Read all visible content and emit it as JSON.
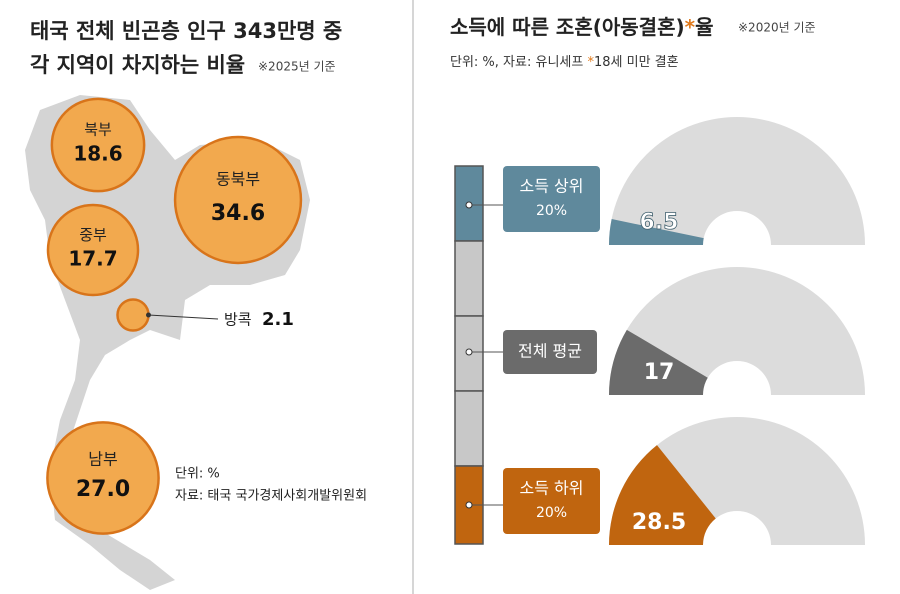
{
  "chart_data": [
    {
      "type": "bubble",
      "title": [
        "태국 전체 빈곤층 인구 343만명 중",
        "각 지역이 차지하는 비율"
      ],
      "note": "※2025년 기준",
      "categories": [
        "북부",
        "동북부",
        "중부",
        "방콕",
        "남부"
      ],
      "values": [
        18.6,
        34.6,
        17.7,
        2.1,
        27.0
      ],
      "value_labels": [
        "18.6",
        "34.6",
        "17.7",
        "2.1",
        "27.0"
      ],
      "color": "#f2a94e",
      "unit": "단위: %",
      "source": "자료: 태국 국가경제사회개발위원회"
    },
    {
      "type": "gauge",
      "title": "소득에 따른 조혼(아동결혼)",
      "title_mark": "*",
      "title_end": "율",
      "note": "※2020년 기준",
      "subtitle": [
        "단위: %, 자료: 유니세프 ",
        "*",
        "18세 미만 결혼"
      ],
      "categories": [
        [
          "소득 상위",
          "20%"
        ],
        [
          "전체 평균"
        ],
        [
          "소득 하위",
          "20%"
        ]
      ],
      "values": [
        6.5,
        17,
        28.5
      ],
      "colors": [
        "#5f899c",
        "#6b6b6b",
        "#c0650f"
      ],
      "ylim": [
        0,
        100
      ]
    }
  ]
}
